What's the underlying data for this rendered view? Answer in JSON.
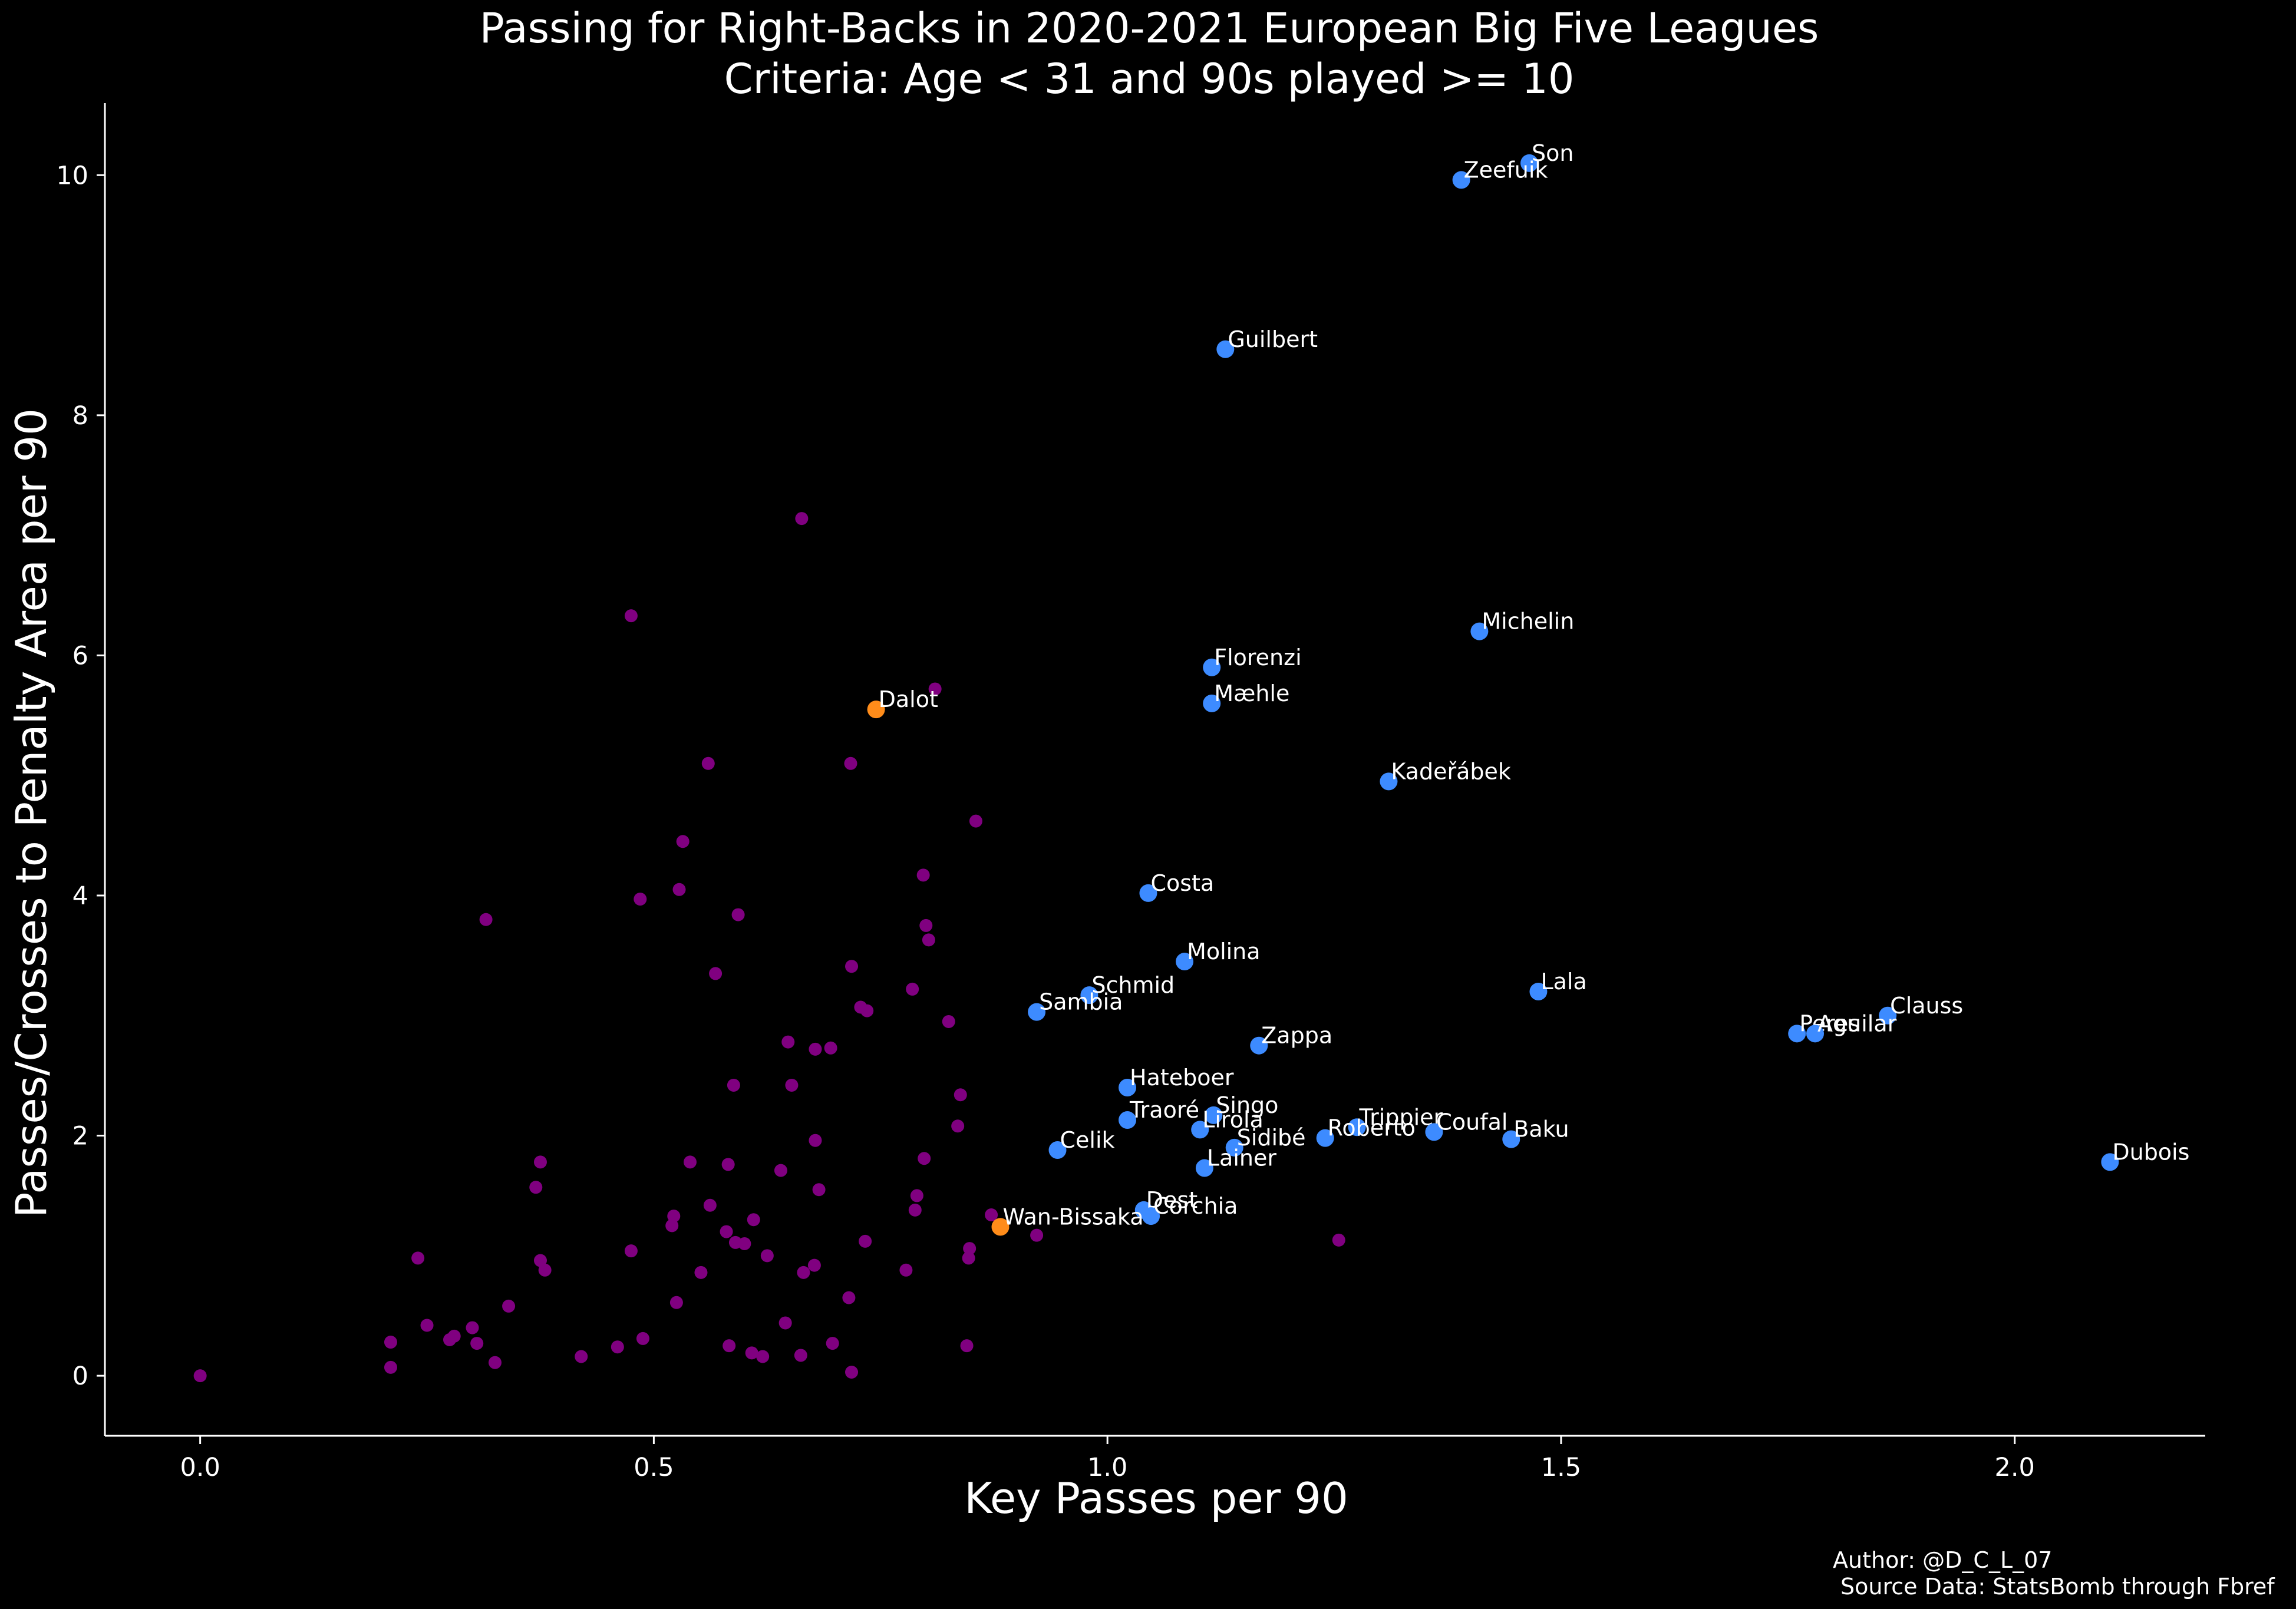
{
  "chart_data": {
    "type": "scatter",
    "title": "Passing for Right-Backs in 2020-2021 European Big Five Leagues",
    "subtitle": "Criteria: Age < 31 and 90s played >= 10",
    "xlabel": "Key Passes per 90",
    "ylabel": "Passes/Crosses to Penalty Area per 90",
    "xlim": [
      -0.105,
      2.21
    ],
    "ylim": [
      -0.5,
      10.6
    ],
    "xticks": [
      0.0,
      0.5,
      1.0,
      1.5,
      2.0
    ],
    "xtick_labels": [
      "0.0",
      "0.5",
      "1.0",
      "1.5",
      "2.0"
    ],
    "yticks": [
      0,
      2,
      4,
      6,
      8,
      10
    ],
    "ytick_labels": [
      "0",
      "2",
      "4",
      "6",
      "8",
      "10"
    ],
    "grid": false,
    "colors": {
      "background": "#000000",
      "axes": "#ffffff",
      "other": "#800080",
      "highlight": "#3d8bff",
      "focus": "#ff8c1a"
    },
    "labeled": [
      {
        "name": "Son",
        "x": 1.465,
        "y": 10.1,
        "group": "highlight"
      },
      {
        "name": "Zeefuik",
        "x": 1.39,
        "y": 9.96,
        "group": "highlight"
      },
      {
        "name": "Guilbert",
        "x": 1.13,
        "y": 8.55,
        "group": "highlight"
      },
      {
        "name": "Michelin",
        "x": 1.41,
        "y": 6.2,
        "group": "highlight"
      },
      {
        "name": "Florenzi",
        "x": 1.115,
        "y": 5.9,
        "group": "highlight"
      },
      {
        "name": "Mæhle",
        "x": 1.115,
        "y": 5.6,
        "group": "highlight"
      },
      {
        "name": "Dalot",
        "x": 0.745,
        "y": 5.55,
        "group": "focus"
      },
      {
        "name": "Kadeřábek",
        "x": 1.31,
        "y": 4.95,
        "group": "highlight"
      },
      {
        "name": "Costa",
        "x": 1.045,
        "y": 4.02,
        "group": "highlight"
      },
      {
        "name": "Molina",
        "x": 1.085,
        "y": 3.45,
        "group": "highlight"
      },
      {
        "name": "Lala",
        "x": 1.475,
        "y": 3.2,
        "group": "highlight"
      },
      {
        "name": "Schmid",
        "x": 0.98,
        "y": 3.17,
        "group": "highlight"
      },
      {
        "name": "Sambia",
        "x": 0.922,
        "y": 3.03,
        "group": "highlight"
      },
      {
        "name": "Clauss",
        "x": 1.86,
        "y": 3.0,
        "group": "highlight"
      },
      {
        "name": "Peres",
        "x": 1.76,
        "y": 2.85,
        "group": "highlight"
      },
      {
        "name": "Aguilar",
        "x": 1.78,
        "y": 2.85,
        "group": "highlight"
      },
      {
        "name": "Zappa",
        "x": 1.167,
        "y": 2.75,
        "group": "highlight"
      },
      {
        "name": "Hateboer",
        "x": 1.022,
        "y": 2.4,
        "group": "highlight"
      },
      {
        "name": "Singo",
        "x": 1.117,
        "y": 2.17,
        "group": "highlight"
      },
      {
        "name": "Traoré",
        "x": 1.022,
        "y": 2.13,
        "group": "highlight"
      },
      {
        "name": "Trippier",
        "x": 1.275,
        "y": 2.07,
        "group": "highlight"
      },
      {
        "name": "Lirola",
        "x": 1.102,
        "y": 2.05,
        "group": "highlight"
      },
      {
        "name": "Coufal",
        "x": 1.36,
        "y": 2.03,
        "group": "highlight"
      },
      {
        "name": "Roberto",
        "x": 1.24,
        "y": 1.98,
        "group": "highlight"
      },
      {
        "name": "Baku",
        "x": 1.445,
        "y": 1.97,
        "group": "highlight"
      },
      {
        "name": "Sidibé",
        "x": 1.14,
        "y": 1.9,
        "group": "highlight"
      },
      {
        "name": "Celik",
        "x": 0.945,
        "y": 1.88,
        "group": "highlight"
      },
      {
        "name": "Dubois",
        "x": 2.105,
        "y": 1.78,
        "group": "highlight"
      },
      {
        "name": "Lainer",
        "x": 1.107,
        "y": 1.73,
        "group": "highlight"
      },
      {
        "name": "Dest",
        "x": 1.04,
        "y": 1.38,
        "group": "highlight"
      },
      {
        "name": "Corchia",
        "x": 1.048,
        "y": 1.33,
        "group": "highlight"
      },
      {
        "name": "Wan-Bissaka",
        "x": 0.882,
        "y": 1.24,
        "group": "focus"
      }
    ],
    "others": [
      [
        0.0,
        0.0
      ],
      [
        0.21,
        0.07
      ],
      [
        0.21,
        0.28
      ],
      [
        0.24,
        0.98
      ],
      [
        0.25,
        0.42
      ],
      [
        0.275,
        0.3
      ],
      [
        0.28,
        0.33
      ],
      [
        0.3,
        0.4
      ],
      [
        0.305,
        0.27
      ],
      [
        0.315,
        3.8
      ],
      [
        0.325,
        0.11
      ],
      [
        0.34,
        0.58
      ],
      [
        0.37,
        1.57
      ],
      [
        0.375,
        0.96
      ],
      [
        0.375,
        1.78
      ],
      [
        0.38,
        0.88
      ],
      [
        0.42,
        0.16
      ],
      [
        0.46,
        0.24
      ],
      [
        0.475,
        1.04
      ],
      [
        0.475,
        6.33
      ],
      [
        0.485,
        3.97
      ],
      [
        0.488,
        0.31
      ],
      [
        0.52,
        1.25
      ],
      [
        0.522,
        1.33
      ],
      [
        0.525,
        0.61
      ],
      [
        0.528,
        4.05
      ],
      [
        0.532,
        4.45
      ],
      [
        0.54,
        1.78
      ],
      [
        0.552,
        0.86
      ],
      [
        0.56,
        5.1
      ],
      [
        0.562,
        1.42
      ],
      [
        0.568,
        3.35
      ],
      [
        0.58,
        1.2
      ],
      [
        0.582,
        1.76
      ],
      [
        0.583,
        0.25
      ],
      [
        0.588,
        2.42
      ],
      [
        0.59,
        1.11
      ],
      [
        0.593,
        3.84
      ],
      [
        0.6,
        1.1
      ],
      [
        0.608,
        0.19
      ],
      [
        0.61,
        1.3
      ],
      [
        0.62,
        0.16
      ],
      [
        0.625,
        1.0
      ],
      [
        0.64,
        1.71
      ],
      [
        0.645,
        0.44
      ],
      [
        0.648,
        2.78
      ],
      [
        0.652,
        2.42
      ],
      [
        0.662,
        0.17
      ],
      [
        0.663,
        7.14
      ],
      [
        0.665,
        0.86
      ],
      [
        0.677,
        0.92
      ],
      [
        0.678,
        2.72
      ],
      [
        0.678,
        1.96
      ],
      [
        0.682,
        1.55
      ],
      [
        0.695,
        2.73
      ],
      [
        0.697,
        0.27
      ],
      [
        0.715,
        0.65
      ],
      [
        0.717,
        5.1
      ],
      [
        0.718,
        3.41
      ],
      [
        0.718,
        0.03
      ],
      [
        0.728,
        3.07
      ],
      [
        0.733,
        1.12
      ],
      [
        0.735,
        3.04
      ],
      [
        0.778,
        0.88
      ],
      [
        0.785,
        3.22
      ],
      [
        0.788,
        1.38
      ],
      [
        0.79,
        1.5
      ],
      [
        0.797,
        4.17
      ],
      [
        0.798,
        1.81
      ],
      [
        0.8,
        3.75
      ],
      [
        0.803,
        3.63
      ],
      [
        0.81,
        5.72
      ],
      [
        0.825,
        2.95
      ],
      [
        0.835,
        2.08
      ],
      [
        0.838,
        2.34
      ],
      [
        0.845,
        0.25
      ],
      [
        0.847,
        0.98
      ],
      [
        0.848,
        1.06
      ],
      [
        0.855,
        4.62
      ],
      [
        0.872,
        1.34
      ],
      [
        0.922,
        1.17
      ],
      [
        1.255,
        1.13
      ]
    ]
  },
  "credits": {
    "author": "Author: @D_C_L_07",
    "source": "Source Data: StatsBomb through Fbref"
  }
}
